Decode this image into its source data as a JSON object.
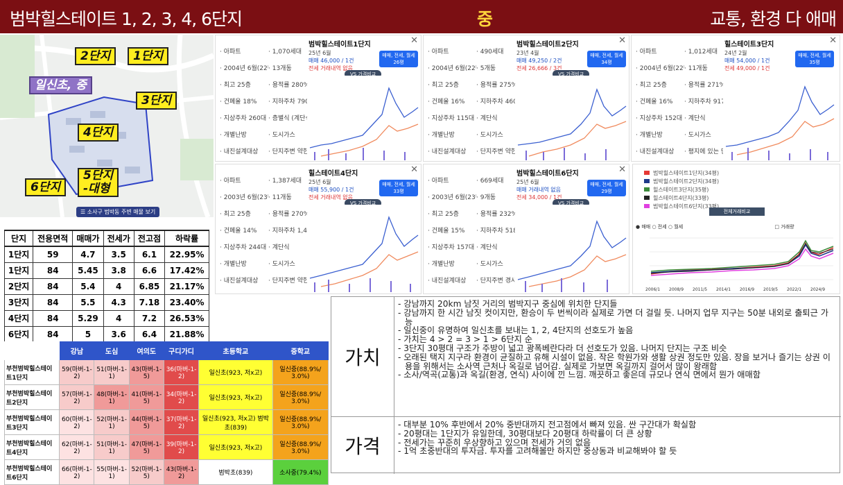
{
  "header": {
    "title": "범박힐스테이트 1, 2, 3, 4, 6단지",
    "grade": "중",
    "summary": "교통, 환경 다 애매"
  },
  "map": {
    "labels": [
      "2단지",
      "1단지",
      "일신초, 중",
      "3단지",
      "4단지",
      "5단지",
      "-대형",
      "6단지"
    ],
    "button": "☰ 소사구 범박동 주변 매물 보기"
  },
  "stats": {
    "headers": [
      "단지",
      "전용면적",
      "매매가",
      "전세가",
      "전고점",
      "하락률"
    ],
    "rows": [
      [
        "1단지",
        "59",
        "4.7",
        "3.5",
        "6.1",
        "22.95%"
      ],
      [
        "1단지",
        "84",
        "5.45",
        "3.8",
        "6.6",
        "17.42%"
      ],
      [
        "2단지",
        "84",
        "5.4",
        "4",
        "6.85",
        "21.17%"
      ],
      [
        "3단지",
        "84",
        "5.5",
        "4.3",
        "7.18",
        "23.40%"
      ],
      [
        "4단지",
        "84",
        "5.29",
        "4",
        "7.2",
        "26.53%"
      ],
      [
        "6단지",
        "84",
        "5",
        "3.6",
        "6.4",
        "21.88%"
      ]
    ]
  },
  "distance": {
    "headers": [
      "",
      "강남",
      "도심",
      "여의도",
      "구디가디",
      "초등학교",
      "중학교"
    ],
    "rows": [
      [
        "부천범박힐스테이트1단지",
        "59(마버-1-2)",
        "51(마버-1-1)",
        "43(마버-1-5)",
        "36(마버-1-2)",
        "일신초(923, 저x고)",
        "일신중(88.9%/ 3.0%)"
      ],
      [
        "부천범박힐스테이트2단지",
        "57(마버-1-2)",
        "48(마버-1-1)",
        "41(마버-1-5)",
        "34(마버-1-2)",
        "일신초(923, 저x고)",
        "일신중(88.9%/ 3.0%)"
      ],
      [
        "부천범박힐스테이트3단지",
        "60(마버-1-2)",
        "52(마버-1-1)",
        "44(마버-1-5)",
        "37(마버-1-2)",
        "일신초(923, 저x고) 범박초(839)",
        "일신중(88.9%/ 3.0%)"
      ],
      [
        "부천범박힐스테이트4단지",
        "62(마버-1-2)",
        "51(마버-1-1)",
        "47(마버-1-5)",
        "39(마버-1-2)",
        "일신초(923, 저x고)",
        "일신중(88.9%/ 3.0%)"
      ],
      [
        "부천범박힐스테이트6단지",
        "66(마버-1-2)",
        "55(마버-1-1)",
        "52(마버-1-5)",
        "43(마버-1-2)",
        "범박초(839)",
        "소사중(79.4%)"
      ]
    ]
  },
  "panels": [
    {
      "title": "범박힐스테이트1단지",
      "facts": [
        "아파트",
        "1,070세대",
        "2004년 6월(22년차)",
        "13개동",
        "최고 25층",
        "용적률 280%",
        "건폐율 18%",
        "지하주차 790대",
        "지상주차 260대",
        "층별식 (계단식,복도식)",
        "개별난방",
        "도시가스",
        "내진설계대상",
        "단지주변 약한 경사"
      ],
      "recent": "25년 6월",
      "price": "매매 46,000 / 1건",
      "contract": "전세 거래내역 없음",
      "tab": "매매, 전세, 월세 26평"
    },
    {
      "title": "범박힐스테이트2단지",
      "facts": [
        "아파트",
        "490세대",
        "2004년 6월(22년차)",
        "5개동",
        "최고 25층",
        "용적률 275%",
        "건폐율 16%",
        "지하주차 460대",
        "지상주차 115대",
        "계단식",
        "개별난방",
        "도시가스",
        "내진설계대상",
        "단지주변 약한 경사"
      ],
      "recent": "23년 4월",
      "price": "매매 49,250 / 2건",
      "contract": "전세 26,666 / 3건",
      "tab": "매매, 전세, 월세 34평"
    },
    {
      "title": "힐스테이트3단지",
      "facts": [
        "아파트",
        "1,012세대",
        "2004년 6월(22년차)",
        "11개동",
        "최고 25층",
        "용적률 271%",
        "건폐율 16%",
        "지하주차 917대",
        "지상주차 152대",
        "계단식",
        "개별난방",
        "도시가스",
        "내진설계대상",
        "평지에 있는 단지"
      ],
      "recent": "24년 2월",
      "price": "매매 54,000 / 1건",
      "contract": "전세 49,000 / 1건",
      "tab": "매매, 전세, 월세 35평"
    },
    {
      "title": "힐스테이트4단지",
      "facts": [
        "아파트",
        "1,387세대",
        "2003년 6월(23년차)",
        "11개동",
        "최고 25층",
        "용적률 270%",
        "건폐율 14%",
        "지하주차 1,423대",
        "지상주차 244대",
        "계단식",
        "개별난방",
        "도시가스",
        "내진설계대상",
        "단지주변 약한 경사"
      ],
      "recent": "25년 6월",
      "price": "매매 55,900 / 1건",
      "contract": "전세 거래내역 없음",
      "tab": "매매, 전세, 월세 33평"
    },
    {
      "title": "범박힐스테이트6단지",
      "facts": [
        "아파트",
        "669세대",
        "2003년 6월(23년차)",
        "9개동",
        "최고 25층",
        "용적률 232%",
        "건폐율 15%",
        "지하주차 518대",
        "지상주차 157대",
        "계단식",
        "개별난방",
        "도시가스",
        "내진설계대상",
        "단지주변 경사"
      ],
      "recent": "25년 6월",
      "price": "매매 거래내역 없음",
      "contract": "전세 34,000 / 1건",
      "tab": "매매, 전세, 월세 29평"
    }
  ],
  "compare": {
    "items": [
      "범박힐스테이트1단지(34평)",
      "범박힐스테이트2단지(34평)",
      "힐스테이트3단지(35평)",
      "힐스테이트4단지(33평)",
      "범박힐스테이트6단지(33평)"
    ],
    "colors": [
      "#e53935",
      "#1e3a8a",
      "#3a8a3a",
      "#222222",
      "#e040e0"
    ],
    "button": "전체거래비교",
    "legend": [
      "매매",
      "전세",
      "월세",
      "거래량"
    ],
    "xlabels": [
      "2006/1",
      "2008/9",
      "2011/5",
      "2014/1",
      "2016/9",
      "2019/5",
      "2022/1",
      "2024/9"
    ]
  },
  "value": {
    "title": "가치",
    "lines": [
      "강남까지 20km 남짓 거리의 범박지구 중심에 위치한 단지들",
      "강남까지 한 시간 남짓 컷이지만, 환승이 두 번씩이라 실제로 가면 더 걸릴 듯. 나머지 업무 지구는 50분 내외로 출퇴근 가능",
      "일신중이 유명하여 일신초를 보내는 1, 2, 4단지의 선호도가 높음",
      "가치는 4 > 2 = 3 > 1 > 6단지 순",
      "3단지 30평대 구조가 주방이 넓고 광폭베란다라 더 선호도가 있음. 나머지 단지는 구조 비슷",
      "오래된 택지 지구라 환경이 균질하고 유해 시설이 없음. 작은 학원가와 생활 상권 정도만 있음. 장을 보거나 즐기는 상권 이용을 위해서는 소사역 근처나 옥길로 넘어감. 실제로 가보면 옥길까지 걸어서 많이 왕래함",
      "소사/역곡(교통)과 옥길(환경, 연식) 사이에 낀 느낌. 깨끗하고 좋은데 규모나 연식 면에서 뭔가 애매함"
    ]
  },
  "price": {
    "title": "가격",
    "lines": [
      "대부분 10% 후반에서 20% 중반대까지 전고점에서 빠져 있음. 싼 구간대가 확실함",
      "20평대는 1단지가 유일한데, 30평대보다 20평대 하락률이 더 큰 상황",
      "전세가는 꾸준히 우상향하고 있으며 전세가 거의 없음",
      "1억 초중반대의 투자금. 투자를 고려해볼만 하지만 중상동과 비교해봐야 할 듯"
    ]
  }
}
